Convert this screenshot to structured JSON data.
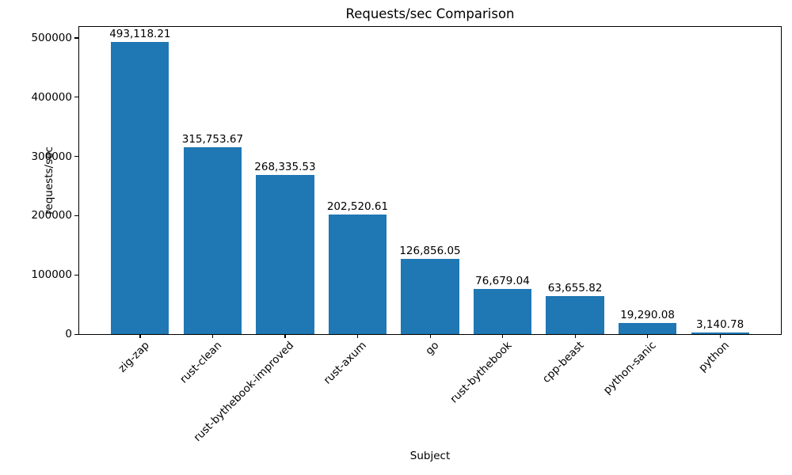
{
  "chart_data": {
    "type": "bar",
    "title": "Requests/sec Comparison",
    "xlabel": "Subject",
    "ylabel": "requests/sec",
    "categories": [
      "zig-zap",
      "rust-clean",
      "rust-bythebook-improved",
      "rust-axum",
      "go",
      "rust-bythebook",
      "cpp-beast",
      "python-sanic",
      "python"
    ],
    "values": [
      493118.21,
      315753.67,
      268335.53,
      202520.61,
      126856.05,
      76679.04,
      63655.82,
      19290.08,
      3140.78
    ],
    "bar_value_labels": [
      "493,118.21",
      "315,753.67",
      "268,335.53",
      "202,520.61",
      "126,856.05",
      "76,679.04",
      "63,655.82",
      "19,290.08",
      "3,140.78"
    ],
    "yticks": [
      0,
      100000,
      200000,
      300000,
      400000,
      500000
    ],
    "ytick_labels": [
      "0",
      "100000",
      "200000",
      "300000",
      "400000",
      "500000"
    ],
    "ylim": [
      0,
      518716
    ],
    "xlim": [
      -0.84,
      8.84
    ],
    "bar_width": 0.8,
    "bar_color": "#1f77b4",
    "grid": false,
    "legend_position": "none",
    "xtick_rotation": 45
  }
}
